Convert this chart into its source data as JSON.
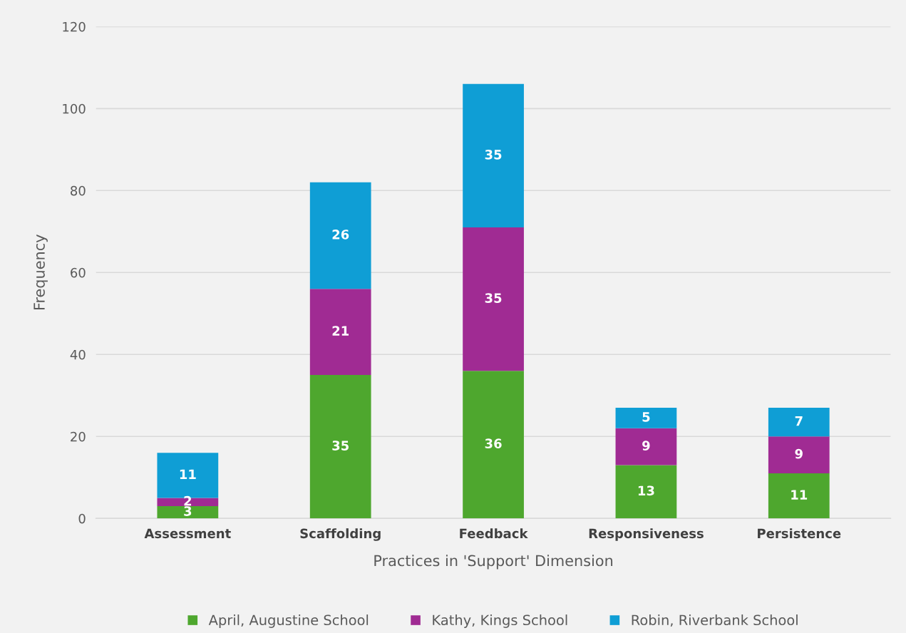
{
  "chart_data": {
    "type": "bar",
    "stacked": true,
    "xlabel": "Practices in 'Support' Dimension",
    "ylabel": "Frequency",
    "categories": [
      "Assessment",
      "Scaffolding",
      "Feedback",
      "Responsiveness",
      "Persistence"
    ],
    "series": [
      {
        "name": "April, Augustine School",
        "color": "#4ea72e",
        "values": [
          3,
          35,
          36,
          13,
          11
        ]
      },
      {
        "name": "Kathy, Kings School",
        "color": "#a02b93",
        "values": [
          2,
          21,
          35,
          9,
          9
        ]
      },
      {
        "name": "Robin, Riverbank School",
        "color": "#0f9ed5",
        "values": [
          11,
          26,
          35,
          5,
          7
        ]
      }
    ],
    "ylim": [
      0,
      120
    ],
    "yticks": [
      0,
      20,
      40,
      60,
      80,
      100,
      120
    ],
    "grid": "y",
    "legend": "bottom",
    "data_labels": true
  }
}
